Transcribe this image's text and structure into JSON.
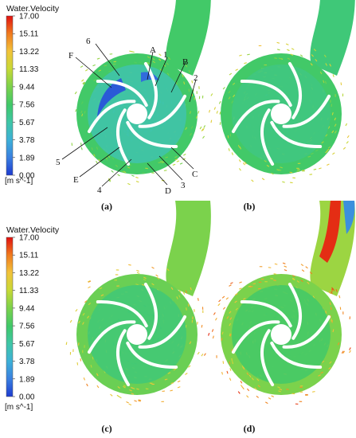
{
  "legend": {
    "title": "Water.Velocity",
    "ticks": [
      "17.00",
      "15.11",
      "13.22",
      "11.33",
      "9.44",
      "7.56",
      "5.67",
      "3.78",
      "1.89",
      "0.00"
    ],
    "unit": "[m s^-1]",
    "colormap": [
      "#e01010",
      "#f07a1e",
      "#f2c23a",
      "#c9d936",
      "#7ed24a",
      "#3fc86a",
      "#3fc6a8",
      "#3db0d8",
      "#3a7fe0",
      "#1d3bd0"
    ]
  },
  "panels": [
    {
      "caption": "(a)"
    },
    {
      "caption": "(b)"
    },
    {
      "caption": "(c)"
    },
    {
      "caption": "(d)"
    }
  ],
  "callouts": {
    "letters": [
      "A",
      "B",
      "C",
      "D",
      "E",
      "F"
    ],
    "numbers": [
      "1",
      "2",
      "3",
      "4",
      "5",
      "6"
    ]
  },
  "colors": {
    "blade": "#ffffff",
    "hub": "#ffffff",
    "leader": "#111111",
    "background": "#ffffff"
  }
}
